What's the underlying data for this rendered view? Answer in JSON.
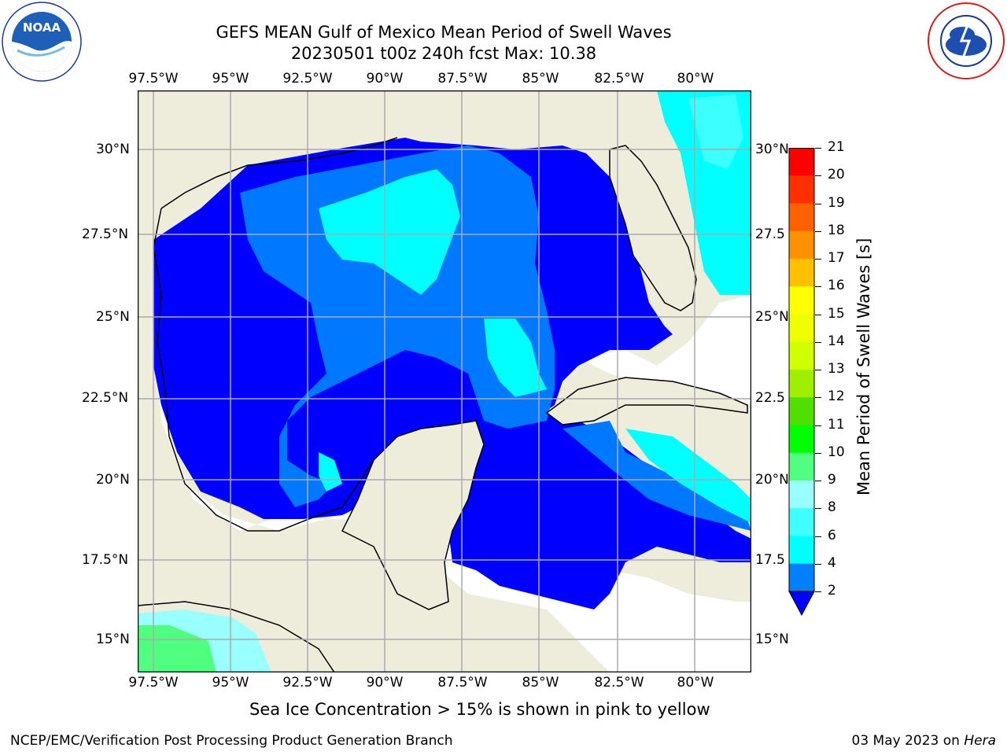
{
  "title": {
    "line1": "GEFS MEAN Gulf of Mexico Mean Period of Swell Waves",
    "line2": "20230501 t00z 240h fcst   Max: 10.38"
  },
  "logos": {
    "noaa": {
      "text": "NOAA",
      "ring_text": "NATIONAL OCEANIC AND ATMOSPHERIC ADMINISTRATION",
      "bottom_text": "U.S. DEPARTMENT OF COMMERCE"
    },
    "nws": {
      "ring_text": "NATIONAL WEATHER SERVICE"
    }
  },
  "map": {
    "lon_labels": [
      "97.5°W",
      "95°W",
      "92.5°W",
      "90°W",
      "87.5°W",
      "85°W",
      "82.5°W",
      "80°W"
    ],
    "lat_labels": [
      "30°N",
      "27.5°N",
      "25°N",
      "22.5°N",
      "20°N",
      "17.5°N",
      "15°N"
    ],
    "lat_labels_right": [
      "30°N",
      "27.5",
      "25°N",
      "22.5",
      "20°N",
      "17.5",
      "15°N"
    ],
    "colors": {
      "land": "#eeeddb",
      "ocean_dark": "#0000ff",
      "ocean_mid": "#0078ff",
      "ocean_cyan": "#00ffff",
      "ocean_light": "#3cffff",
      "gridline": "#aaaaaa"
    }
  },
  "colorbar": {
    "label": "Mean Period of Swell Waves [s]",
    "ticks": [
      "2",
      "4",
      "6",
      "8",
      "9",
      "10",
      "11",
      "12",
      "13",
      "14",
      "15",
      "16",
      "17",
      "18",
      "19",
      "20",
      "21"
    ],
    "colors": [
      "#0000ff",
      "#0080ff",
      "#00ffff",
      "#40ffff",
      "#9affff",
      "#50ff80",
      "#00ff00",
      "#50e000",
      "#a0ee00",
      "#d0ff00",
      "#f0ff00",
      "#ffff00",
      "#ffc000",
      "#ff9000",
      "#ff6000",
      "#ff3000",
      "#ff0000"
    ]
  },
  "bottom_note": "Sea Ice Concentration > 15% is shown in pink to yellow",
  "footer": {
    "left": "NCEP/EMC/Verification Post Processing Product Generation Branch",
    "right_date": "03 May 2023 on ",
    "right_machine": "Hera"
  }
}
